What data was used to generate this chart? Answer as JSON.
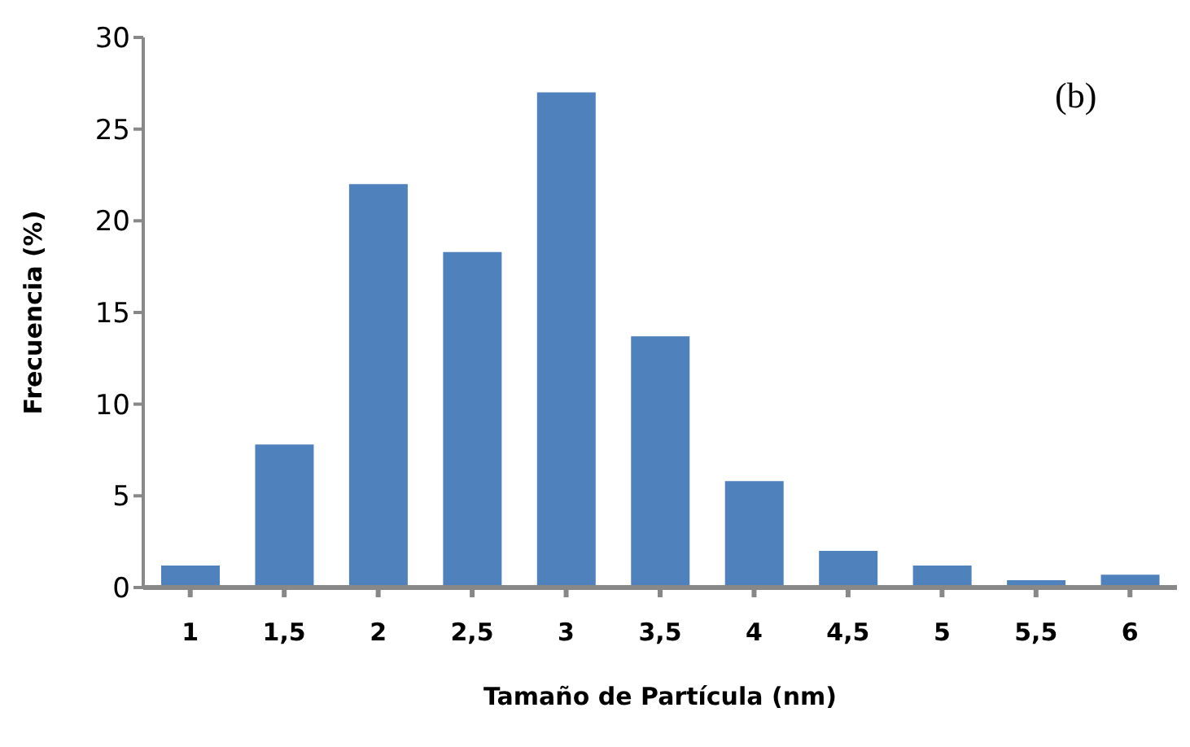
{
  "chart_data": {
    "type": "bar",
    "xlabel": "Tamaño de Partícula (nm)",
    "ylabel": "Frecuencia (%)",
    "categories": [
      "1",
      "1,5",
      "2",
      "2,5",
      "3",
      "3,5",
      "4",
      "4,5",
      "5",
      "5,5",
      "6"
    ],
    "values": [
      1.2,
      7.8,
      22,
      18.3,
      27,
      13.7,
      5.8,
      2,
      1.2,
      0.4,
      0.7
    ],
    "color": "#4f81bd",
    "ylim": [
      0,
      30
    ],
    "yticks": [
      0,
      5,
      10,
      15,
      20,
      25,
      30
    ],
    "grid": false,
    "annotations": [
      "(b)"
    ]
  }
}
